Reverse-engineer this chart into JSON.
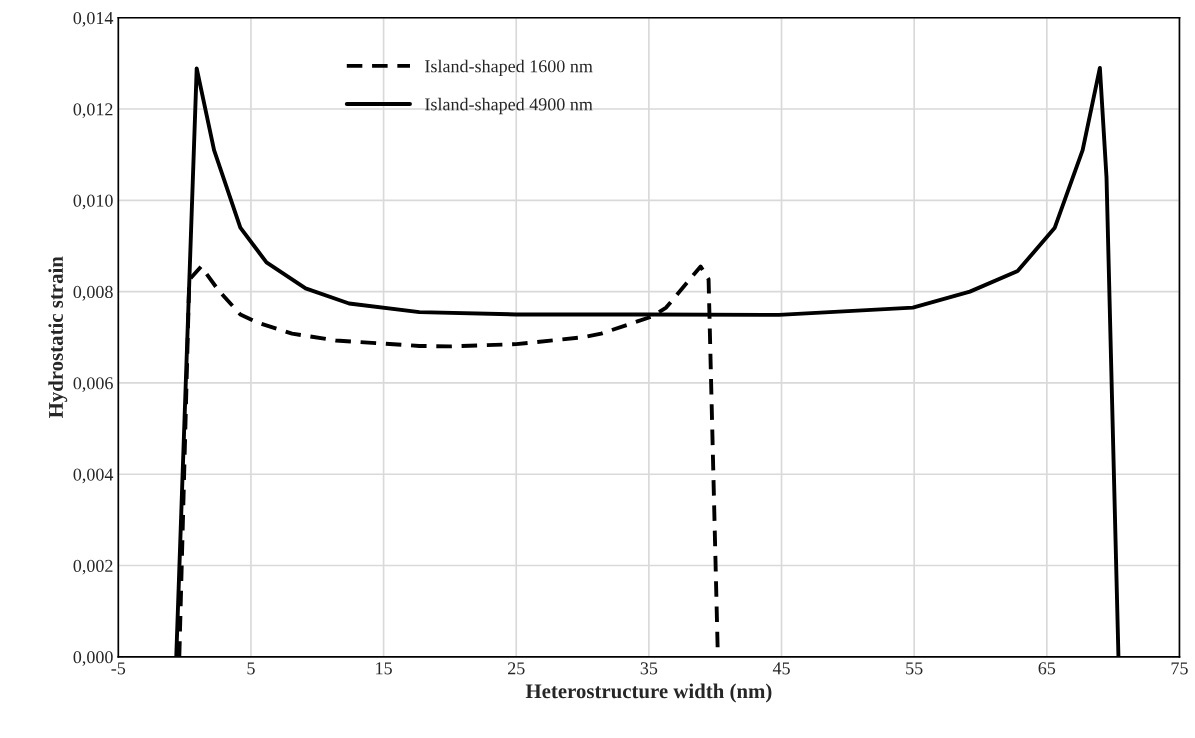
{
  "chart_data": {
    "type": "line",
    "xlabel": "Heterostructure width (nm)",
    "ylabel": "Hydrostatic strain",
    "xlim": [
      -5,
      75
    ],
    "xticks": [
      -5,
      5,
      15,
      25,
      35,
      45,
      55,
      65,
      75
    ],
    "ylim": [
      0,
      0.014
    ],
    "yticks": [
      {
        "value": 0,
        "label": "0,000"
      },
      {
        "value": 0.002,
        "label": "0,002"
      },
      {
        "value": 0.004,
        "label": "0,004"
      },
      {
        "value": 0.006,
        "label": "0,006"
      },
      {
        "value": 0.008,
        "label": "0,008"
      },
      {
        "value": 0.01,
        "label": "0,010"
      },
      {
        "value": 0.012,
        "label": "0,012"
      },
      {
        "value": 0.014,
        "label": "0,014"
      }
    ],
    "grid": true,
    "legend": "top left",
    "series": [
      {
        "name": "Island-shaped 1600 nm",
        "color": "#000000",
        "line_style": "dashed",
        "x": [
          -0.4,
          0.35,
          1.24,
          2.55,
          4.2,
          5.5,
          8.1,
          11.4,
          17.7,
          20,
          25,
          30,
          31.4,
          35.3,
          36.3,
          38.9,
          39.5,
          40.2
        ],
        "values": [
          0,
          0.00826,
          0.00855,
          0.00803,
          0.0075,
          0.00732,
          0.00708,
          0.00693,
          0.00681,
          0.0068,
          0.00685,
          0.007,
          0.00708,
          0.00746,
          0.00765,
          0.00855,
          0.00827,
          0
        ]
      },
      {
        "name": "Island-shaped 4900 nm",
        "color": "#000000",
        "line_style": "solid",
        "x": [
          -0.63,
          0.91,
          2.22,
          4.2,
          6.17,
          9.12,
          12.4,
          17.7,
          25,
          35,
          44.8,
          54.9,
          59.2,
          62.8,
          65.6,
          67.7,
          69.0,
          69.5,
          70.4
        ],
        "values": [
          0,
          0.01289,
          0.0111,
          0.0094,
          0.00864,
          0.00807,
          0.00774,
          0.00755,
          0.0075,
          0.0075,
          0.00749,
          0.00765,
          0.008,
          0.00845,
          0.0094,
          0.0111,
          0.0129,
          0.0105,
          0
        ]
      }
    ]
  }
}
